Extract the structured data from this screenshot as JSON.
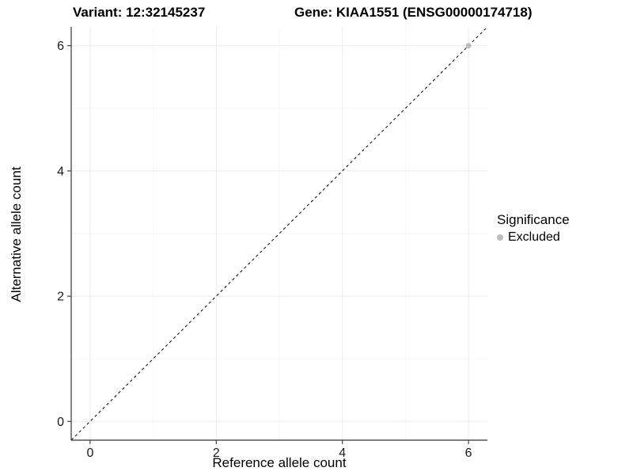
{
  "header": {
    "variant_title": "Variant: 12:32145237",
    "gene_title": "Gene: KIAA1551 (ENSG00000174718)"
  },
  "chart_data": {
    "type": "scatter",
    "xlabel": "Reference allele count",
    "ylabel": "Alternative allele count",
    "xlim": [
      -0.3,
      6.3
    ],
    "ylim": [
      -0.3,
      6.3
    ],
    "x_major_ticks": [
      0,
      2,
      4,
      6
    ],
    "y_major_ticks": [
      0,
      2,
      4,
      6
    ],
    "x_minor_ticks": [
      1,
      3,
      5
    ],
    "y_minor_ticks": [
      1,
      3,
      5
    ],
    "grid": "major and minor gridlines on white background",
    "identity_line": {
      "style": "dashed",
      "slope": 1,
      "intercept": 0,
      "color": "#000000"
    },
    "series": [
      {
        "name": "Excluded",
        "color": "#bdbdbd",
        "points": [
          {
            "x": 6,
            "y": 6
          }
        ]
      }
    ],
    "legend": {
      "title": "Significance",
      "position": "right",
      "items": [
        {
          "label": "Excluded",
          "color": "#bdbdbd",
          "marker": "circle"
        }
      ]
    },
    "colors": {
      "background": "#ffffff",
      "grid_major": "#ebebeb",
      "grid_minor": "#f6f6f6",
      "axis_line": "#333333",
      "tick_text": "#1a1a1a"
    }
  }
}
